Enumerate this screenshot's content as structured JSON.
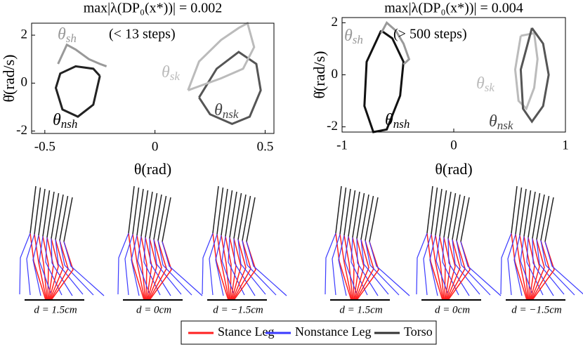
{
  "chart_data": [
    {
      "type": "line",
      "title": "max|λ(DP₀(x*))| = 0.002",
      "xlabel": "θ(rad)",
      "ylabel": "θ̇(rad/s)",
      "annotations": [
        {
          "symbol": "θ",
          "sub": "sh"
        },
        {
          "symbol": "θ",
          "sub": "sk"
        },
        {
          "symbol": "θ",
          "sub": "nsh"
        },
        {
          "symbol": "θ",
          "sub": "nsk"
        },
        {
          "text": "(< 13 steps)"
        }
      ],
      "xlim": [
        -0.56,
        0.54
      ],
      "xticks": [
        -0.5,
        0,
        0.5
      ],
      "ylim": [
        -2.1,
        2.5
      ],
      "yticks": [
        -2,
        0,
        2
      ],
      "series": [
        {
          "color": "#222222",
          "x": [
            -0.25,
            -0.28,
            -0.35,
            -0.42,
            -0.45,
            -0.43,
            -0.36,
            -0.28,
            -0.25
          ],
          "values": [
            0.3,
            -0.9,
            -1.4,
            -1.1,
            -0.2,
            0.4,
            0.7,
            0.6,
            0.3
          ]
        },
        {
          "color": "#999999",
          "x": [
            -0.44,
            -0.4,
            -0.36,
            -0.3,
            -0.25,
            -0.22
          ],
          "values": [
            0.8,
            1.6,
            1.4,
            1.0,
            0.8,
            0.7
          ]
        },
        {
          "color": "#555555",
          "x": [
            0.2,
            0.25,
            0.35,
            0.43,
            0.48,
            0.46,
            0.38,
            0.28,
            0.2
          ],
          "values": [
            -0.6,
            -1.3,
            -1.7,
            -1.4,
            -0.3,
            0.8,
            1.3,
            0.6,
            -0.6
          ]
        },
        {
          "color": "#bbbbbb",
          "x": [
            0.15,
            0.2,
            0.3,
            0.38,
            0.42,
            0.45,
            0.4,
            0.3,
            0.18,
            0.15
          ],
          "values": [
            -0.3,
            0.9,
            1.8,
            2.3,
            2.5,
            1.5,
            0.6,
            0.2,
            -0.2,
            -0.3
          ]
        }
      ]
    },
    {
      "type": "line",
      "title": "max|λ(DP₀(x*))| = 0.004",
      "xlabel": "θ(rad)",
      "ylabel": "θ̇(rad/s)",
      "annotations": [
        {
          "symbol": "θ",
          "sub": "sh"
        },
        {
          "symbol": "θ",
          "sub": "sk"
        },
        {
          "symbol": "θ",
          "sub": "nsh"
        },
        {
          "symbol": "θ",
          "sub": "nsk"
        },
        {
          "text": "(> 500 steps)"
        }
      ],
      "xlim": [
        -1,
        1
      ],
      "xticks": [
        -1,
        0,
        1
      ],
      "ylim": [
        -2.2,
        2.2
      ],
      "yticks": [
        -2,
        0,
        2
      ],
      "series": [
        {
          "color": "#111111",
          "x": [
            -0.65,
            -0.78,
            -0.8,
            -0.72,
            -0.6,
            -0.48,
            -0.45,
            -0.55,
            -0.65
          ],
          "values": [
            1.7,
            0.5,
            -1.2,
            -2.2,
            -2.1,
            -0.8,
            0.5,
            1.4,
            1.7
          ]
        },
        {
          "color": "#999999",
          "x": [
            -0.65,
            -0.6,
            -0.52,
            -0.45,
            -0.4,
            -0.45
          ],
          "values": [
            1.6,
            2.0,
            1.7,
            1.2,
            0.6,
            0.4
          ]
        },
        {
          "color": "#bbbbbb",
          "x": [
            0.6,
            0.55,
            0.58,
            0.65,
            0.72,
            0.75,
            0.72,
            0.6
          ],
          "values": [
            1.5,
            0.2,
            -1.0,
            -1.3,
            -0.5,
            0.6,
            1.6,
            1.5
          ]
        },
        {
          "color": "#555555",
          "x": [
            0.7,
            0.8,
            0.85,
            0.8,
            0.7,
            0.62,
            0.6,
            0.7
          ],
          "values": [
            1.8,
            1.2,
            0.0,
            -1.2,
            -1.8,
            -1.3,
            0.2,
            1.8
          ]
        }
      ]
    }
  ],
  "snapshots": {
    "labels": [
      "d = 1.5cm",
      "d = 0cm",
      "d = −1.5cm",
      "d = 1.5cm",
      "d = 0cm",
      "d = −1.5cm"
    ]
  },
  "legend": [
    {
      "name": "Stance Leg",
      "color": "#ff2020"
    },
    {
      "name": "Nonstance Leg",
      "color": "#3a3aff"
    },
    {
      "name": "Torso",
      "color": "#333333"
    }
  ]
}
